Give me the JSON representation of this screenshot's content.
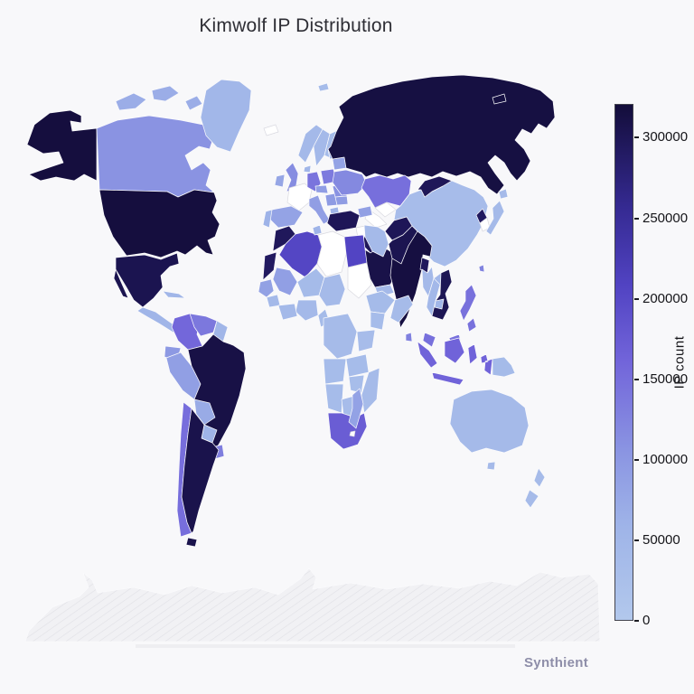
{
  "title": "Kimwolf IP Distribution",
  "watermark": "Synthient",
  "colorbar": {
    "label": "IP count",
    "ticks": [
      0,
      50000,
      100000,
      150000,
      200000,
      250000,
      300000
    ],
    "vmin": 0,
    "vmax": 321000,
    "outline_color": "#43434d"
  },
  "colorscale": [
    [
      0.0,
      "#b2c8ec"
    ],
    [
      0.18,
      "#9fb4e8"
    ],
    [
      0.33,
      "#8a94e2"
    ],
    [
      0.5,
      "#7265da"
    ],
    [
      0.65,
      "#5143c2"
    ],
    [
      0.8,
      "#352a92"
    ],
    [
      1.0,
      "#130d3a"
    ]
  ],
  "no_data_color": "#ffffff",
  "antarctica_color": "#f1f1f4",
  "chart_data": {
    "type": "choropleth",
    "title": "Kimwolf IP Distribution",
    "value_label": "IP count",
    "regions": [
      {
        "id": "usa",
        "name": "United States",
        "value": 318000
      },
      {
        "id": "canada",
        "name": "Canada",
        "value": 107000
      },
      {
        "id": "canadian-arctic",
        "name": "Canadian Arctic Islands",
        "value": 68000
      },
      {
        "id": "greenland",
        "name": "Greenland",
        "value": 49000
      },
      {
        "id": "mexico",
        "name": "Mexico",
        "value": 305000
      },
      {
        "id": "central-america",
        "name": "Central America",
        "value": 54000
      },
      {
        "id": "cuba",
        "name": "Cuba",
        "value": 52000
      },
      {
        "id": "colombia",
        "name": "Colombia",
        "value": 158000
      },
      {
        "id": "venezuela",
        "name": "Venezuela",
        "value": 138000
      },
      {
        "id": "guyana",
        "name": "Guyana / Suriname",
        "value": 53000
      },
      {
        "id": "ecuador",
        "name": "Ecuador",
        "value": 99000
      },
      {
        "id": "peru",
        "name": "Peru",
        "value": 90000
      },
      {
        "id": "brazil",
        "name": "Brazil",
        "value": 312000
      },
      {
        "id": "bolivia",
        "name": "Bolivia",
        "value": 71000
      },
      {
        "id": "paraguay",
        "name": "Paraguay",
        "value": 57000
      },
      {
        "id": "chile",
        "name": "Chile",
        "value": 150000
      },
      {
        "id": "argentina",
        "name": "Argentina",
        "value": 308000
      },
      {
        "id": "uruguay",
        "name": "Uruguay",
        "value": 131000
      },
      {
        "id": "iceland",
        "name": "Iceland",
        "value": null
      },
      {
        "id": "uk",
        "name": "United Kingdom",
        "value": 114000
      },
      {
        "id": "ireland",
        "name": "Ireland",
        "value": 79000
      },
      {
        "id": "norway",
        "name": "Norway",
        "value": 42000
      },
      {
        "id": "sweden",
        "name": "Sweden",
        "value": 44000
      },
      {
        "id": "finland",
        "name": "Finland",
        "value": 39000
      },
      {
        "id": "denmark",
        "name": "Denmark",
        "value": 51000
      },
      {
        "id": "svalbard",
        "name": "Svalbard",
        "value": 36000
      },
      {
        "id": "france",
        "name": "France",
        "value": null
      },
      {
        "id": "spain",
        "name": "Spain",
        "value": 84000
      },
      {
        "id": "portugal",
        "name": "Portugal",
        "value": 59000
      },
      {
        "id": "germany",
        "name": "Germany",
        "value": 143000
      },
      {
        "id": "poland",
        "name": "Poland",
        "value": 136000
      },
      {
        "id": "austria",
        "name": "Austria / Czechia",
        "value": 92000
      },
      {
        "id": "italy",
        "name": "Italy",
        "value": 91000
      },
      {
        "id": "serbia",
        "name": "Balkans",
        "value": 96000
      },
      {
        "id": "greece",
        "name": "Greece",
        "value": 54000
      },
      {
        "id": "romania",
        "name": "Romania",
        "value": 108000
      },
      {
        "id": "bulgaria",
        "name": "Bulgaria",
        "value": 94000
      },
      {
        "id": "belarus",
        "name": "Belarus",
        "value": 83000
      },
      {
        "id": "lithuania",
        "name": "Baltics",
        "value": 48000
      },
      {
        "id": "ukraine",
        "name": "Ukraine",
        "value": 119000
      },
      {
        "id": "russia",
        "name": "Russia",
        "value": 315000
      },
      {
        "id": "kazakhstan",
        "name": "Kazakhstan",
        "value": 149000
      },
      {
        "id": "kyrgyzstan",
        "name": "Kyrgyzstan / Tajikistan",
        "value": 292000
      },
      {
        "id": "uzbekistan",
        "name": "Uzbekistan",
        "value": null
      },
      {
        "id": "turkmenistan",
        "name": "Turkmenistan",
        "value": null
      },
      {
        "id": "azerbaijan",
        "name": "Caucasus",
        "value": 88000
      },
      {
        "id": "turkey",
        "name": "Turkey",
        "value": 300000
      },
      {
        "id": "syria",
        "name": "Syria",
        "value": null
      },
      {
        "id": "jordan",
        "name": "Jordan / Israel",
        "value": 82000
      },
      {
        "id": "iraq",
        "name": "Iraq",
        "value": 298000
      },
      {
        "id": "saudi-arabia",
        "name": "Saudi Arabia",
        "value": 310000
      },
      {
        "id": "yemen",
        "name": "Yemen",
        "value": 43000
      },
      {
        "id": "oman",
        "name": "Oman",
        "value": 104000
      },
      {
        "id": "iran",
        "name": "Iran",
        "value": 41000
      },
      {
        "id": "afghanistan",
        "name": "Afghanistan",
        "value": 300000
      },
      {
        "id": "pakistan",
        "name": "Pakistan",
        "value": 304000
      },
      {
        "id": "india",
        "name": "India",
        "value": 316000
      },
      {
        "id": "bangladesh",
        "name": "Bangladesh",
        "value": 296000
      },
      {
        "id": "sri-lanka",
        "name": "Sri Lanka",
        "value": 128000
      },
      {
        "id": "china",
        "name": "China",
        "value": 34000
      },
      {
        "id": "mongolia",
        "name": "Mongolia",
        "value": 299000
      },
      {
        "id": "north-korea",
        "name": "North Korea",
        "value": 294000
      },
      {
        "id": "south-korea",
        "name": "South Korea",
        "value": null
      },
      {
        "id": "japan",
        "name": "Japan",
        "value": 41000
      },
      {
        "id": "taiwan",
        "name": "Taiwan",
        "value": 126000
      },
      {
        "id": "myanmar",
        "name": "Myanmar",
        "value": 44000
      },
      {
        "id": "thailand",
        "name": "Thailand",
        "value": 47000
      },
      {
        "id": "laos",
        "name": "Laos",
        "value": 49000
      },
      {
        "id": "cambodia",
        "name": "Cambodia",
        "value": 53000
      },
      {
        "id": "vietnam",
        "name": "Vietnam",
        "value": 302000
      },
      {
        "id": "malaysia",
        "name": "Malaysia",
        "value": 148000
      },
      {
        "id": "philippines",
        "name": "Philippines",
        "value": 146000
      },
      {
        "id": "indonesia",
        "name": "Indonesia",
        "value": 163000
      },
      {
        "id": "png",
        "name": "Papua New Guinea",
        "value": 39000
      },
      {
        "id": "morocco",
        "name": "Morocco",
        "value": 297000
      },
      {
        "id": "mauritania",
        "name": "Mauritania / W. Sahara",
        "value": 293000
      },
      {
        "id": "algeria",
        "name": "Algeria",
        "value": 205000
      },
      {
        "id": "tunisia",
        "name": "Tunisia",
        "value": 58000
      },
      {
        "id": "libya",
        "name": "Libya",
        "value": null
      },
      {
        "id": "egypt",
        "name": "Egypt",
        "value": 207000
      },
      {
        "id": "sudan",
        "name": "Sudan",
        "value": null
      },
      {
        "id": "mali",
        "name": "Mali",
        "value": 89000
      },
      {
        "id": "senegal",
        "name": "Senegal",
        "value": 87000
      },
      {
        "id": "guinea",
        "name": "Guinea",
        "value": 42000
      },
      {
        "id": "niger",
        "name": "Niger",
        "value": 39000
      },
      {
        "id": "chad",
        "name": "Chad",
        "value": 41000
      },
      {
        "id": "nigeria",
        "name": "Nigeria",
        "value": 44000
      },
      {
        "id": "ghana",
        "name": "Ghana / Côte d'Ivoire",
        "value": 43000
      },
      {
        "id": "cameroon",
        "name": "Cameroon",
        "value": 39000
      },
      {
        "id": "ethiopia",
        "name": "Ethiopia",
        "value": 39000
      },
      {
        "id": "somalia",
        "name": "Somalia",
        "value": 37000
      },
      {
        "id": "kenya",
        "name": "Kenya",
        "value": 35000
      },
      {
        "id": "drc",
        "name": "DR Congo",
        "value": 37000
      },
      {
        "id": "tanzania",
        "name": "Tanzania",
        "value": 34000
      },
      {
        "id": "angola",
        "name": "Angola",
        "value": 36000
      },
      {
        "id": "zambia",
        "name": "Zambia",
        "value": 35000
      },
      {
        "id": "zimbabwe",
        "name": "Zimbabwe",
        "value": 33000
      },
      {
        "id": "mozambique",
        "name": "Mozambique",
        "value": 37000
      },
      {
        "id": "namibia",
        "name": "Namibia",
        "value": 35000
      },
      {
        "id": "botswana",
        "name": "Botswana",
        "value": 34000
      },
      {
        "id": "south-africa",
        "name": "South Africa",
        "value": 172000
      },
      {
        "id": "lesotho",
        "name": "Lesotho",
        "value": null
      },
      {
        "id": "madagascar",
        "name": "Madagascar",
        "value": 85000
      },
      {
        "id": "australia",
        "name": "Australia",
        "value": 41000
      },
      {
        "id": "new-zealand",
        "name": "New Zealand",
        "value": 37000
      }
    ]
  }
}
